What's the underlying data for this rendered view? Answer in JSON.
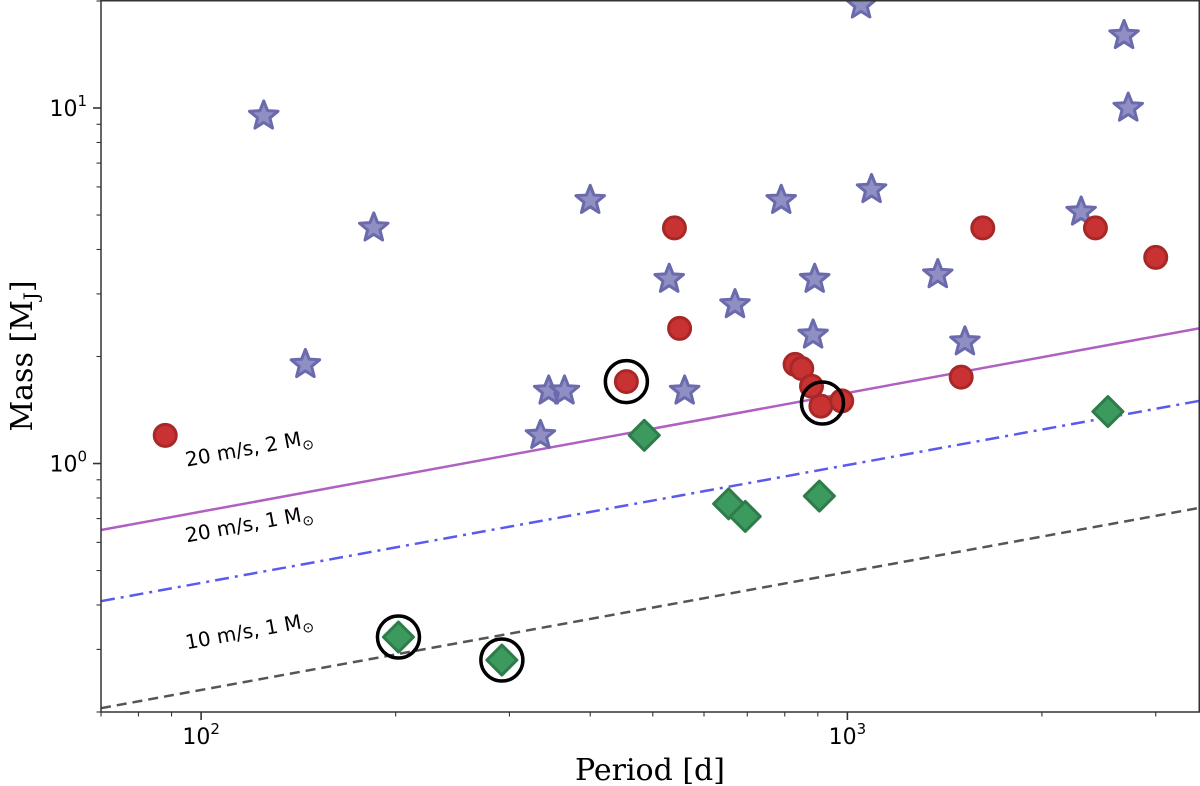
{
  "chart_data": {
    "type": "scatter",
    "xlabel": "Period [d]",
    "ylabel": "Mass [M",
    "ylabel_sub": "J",
    "ylabel_close": "]",
    "x_scale": "log",
    "y_scale": "log",
    "xlim": [
      70,
      3500
    ],
    "ylim": [
      0.2,
      20
    ],
    "grid": false,
    "x_ticks": [
      {
        "value": 100,
        "base": "10",
        "exp": "2"
      },
      {
        "value": 1000,
        "base": "10",
        "exp": "3"
      }
    ],
    "y_ticks": [
      {
        "value": 1,
        "base": "10",
        "exp": "0"
      },
      {
        "value": 10,
        "base": "10",
        "exp": "1"
      }
    ],
    "reference_lines": [
      {
        "base": "20 m/s, 2 M",
        "sun": "⊙",
        "color": "#b060c0",
        "style": "solid",
        "points": [
          [
            70,
            0.65
          ],
          [
            3500,
            2.4
          ]
        ],
        "label_at": [
          95,
          0.98
        ]
      },
      {
        "base": "20 m/s, 1 M",
        "sun": "⊙",
        "color": "#5a5aee",
        "style": "dashdot",
        "points": [
          [
            70,
            0.41
          ],
          [
            3500,
            1.5
          ]
        ],
        "label_at": [
          95,
          0.6
        ]
      },
      {
        "base": "10 m/s, 1 M",
        "sun": "⊙",
        "color": "#555555",
        "style": "dashed",
        "points": [
          [
            70,
            0.205
          ],
          [
            3500,
            0.75
          ]
        ],
        "label_at": [
          95,
          0.3
        ]
      }
    ],
    "series": [
      {
        "marker": "star",
        "color": "#8f8fc4",
        "edge": "#6a6aac",
        "points": [
          [
            125,
            9.5
          ],
          [
            145,
            1.9
          ],
          [
            185,
            4.6
          ],
          [
            335,
            1.2
          ],
          [
            345,
            1.6
          ],
          [
            365,
            1.6
          ],
          [
            400,
            5.5
          ],
          [
            530,
            3.3
          ],
          [
            560,
            1.6
          ],
          [
            670,
            2.8
          ],
          [
            790,
            5.5
          ],
          [
            885,
            2.3
          ],
          [
            890,
            3.3
          ],
          [
            1050,
            19.5
          ],
          [
            1090,
            5.9
          ],
          [
            1380,
            3.4
          ],
          [
            1520,
            2.2
          ],
          [
            2300,
            5.1
          ],
          [
            2680,
            16.0
          ],
          [
            2720,
            10.0
          ]
        ]
      },
      {
        "marker": "circle",
        "color": "#c83232",
        "edge": "#a82828",
        "points": [
          [
            88,
            1.2
          ],
          [
            455,
            1.7
          ],
          [
            540,
            4.6
          ],
          [
            550,
            2.4
          ],
          [
            830,
            1.9
          ],
          [
            850,
            1.85
          ],
          [
            880,
            1.65
          ],
          [
            910,
            1.45
          ],
          [
            980,
            1.5
          ],
          [
            1500,
            1.75
          ],
          [
            1620,
            4.6
          ],
          [
            2420,
            4.6
          ],
          [
            3000,
            3.8
          ]
        ]
      },
      {
        "marker": "diamond",
        "color": "#3c9a5e",
        "edge": "#2e7c4a",
        "points": [
          [
            202,
            0.325
          ],
          [
            292,
            0.28
          ],
          [
            485,
            1.2
          ],
          [
            655,
            0.77
          ],
          [
            695,
            0.71
          ],
          [
            905,
            0.81
          ],
          [
            2530,
            1.4
          ]
        ]
      },
      {
        "marker": "ring",
        "color": "none",
        "edge": "#000000",
        "points": [
          [
            455,
            1.7
          ],
          [
            915,
            1.48
          ],
          [
            202,
            0.325
          ],
          [
            292,
            0.28
          ]
        ]
      }
    ]
  }
}
